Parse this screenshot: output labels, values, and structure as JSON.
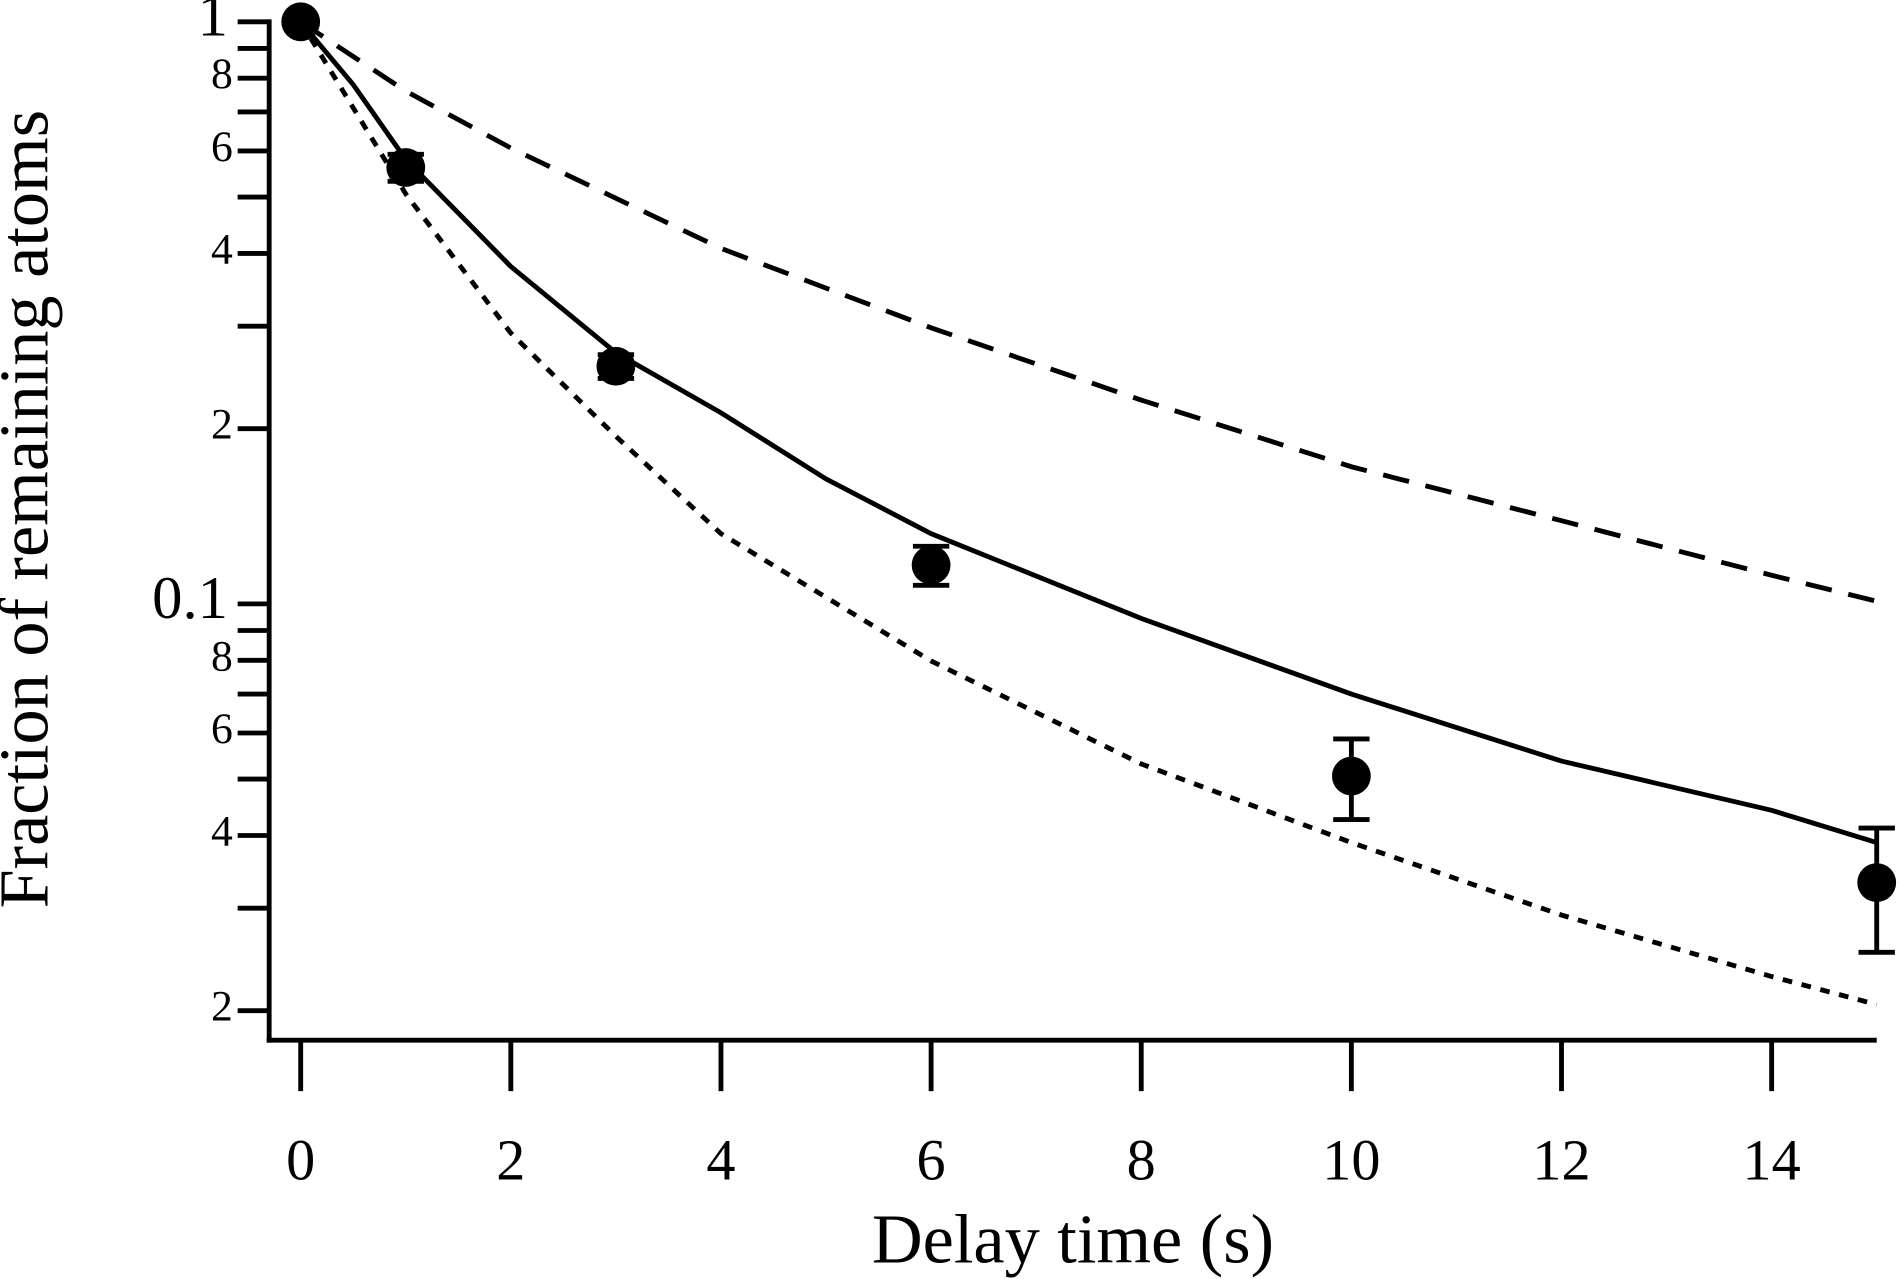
{
  "chart_data": {
    "type": "scatter",
    "x_label": "Delay time (s)",
    "y_label": "Fraction of remaining atoms",
    "xlim": [
      -0.3,
      15
    ],
    "ylim": [
      0.0178,
      1
    ],
    "log_y": true,
    "xticks": [
      0,
      2,
      4,
      6,
      8,
      10,
      12,
      14
    ],
    "yticks": [
      1,
      {
        "value": 0.8,
        "label": "8"
      },
      {
        "value": 0.6,
        "label": "6"
      },
      {
        "value": 0.4,
        "label": "4"
      },
      {
        "value": 0.2,
        "label": "2"
      },
      0.1,
      {
        "value": 0.08,
        "label": "8"
      },
      {
        "value": 0.06,
        "label": "6"
      },
      {
        "value": 0.04,
        "label": "4"
      },
      {
        "value": 0.02,
        "label": "2"
      }
    ],
    "yminorticks": [
      0.9,
      0.7,
      0.5,
      0.3,
      0.09,
      0.07,
      0.05,
      0.03
    ],
    "series": [
      {
        "type": "errorbar",
        "color": "#000000",
        "x": [
          0,
          1,
          3,
          6,
          10,
          15
        ],
        "values": [
          1.0,
          0.562,
          0.256,
          0.1166,
          0.0506,
          0.0332
        ],
        "errors": [
          0.01,
          0.03,
          0.012,
          0.009,
          0.008,
          0.008
        ]
      },
      {
        "type": "line",
        "style": "solid",
        "color": "#000000",
        "x": [
          0,
          0.5,
          1,
          2,
          3,
          4,
          5,
          6,
          8,
          10,
          12,
          14,
          15
        ],
        "values": [
          1.0,
          0.78,
          0.58,
          0.38,
          0.27,
          0.213,
          0.164,
          0.132,
          0.0944,
          0.07,
          0.0537,
          0.0442,
          0.0389
        ]
      },
      {
        "type": "line",
        "style": "dashed",
        "color": "#000000",
        "x": [
          0,
          1,
          2,
          4,
          6,
          8,
          10,
          12,
          14,
          15
        ],
        "values": [
          1.0,
          0.76,
          0.607,
          0.408,
          0.298,
          0.224,
          0.172,
          0.139,
          0.112,
          0.101
        ]
      },
      {
        "type": "line",
        "style": "dotted",
        "color": "#000000",
        "x": [
          0,
          1,
          2,
          3,
          4,
          6,
          8,
          10,
          12,
          14,
          15
        ],
        "values": [
          1.0,
          0.506,
          0.292,
          0.194,
          0.132,
          0.0798,
          0.0531,
          0.0389,
          0.0292,
          0.0229,
          0.0205
        ]
      }
    ]
  }
}
